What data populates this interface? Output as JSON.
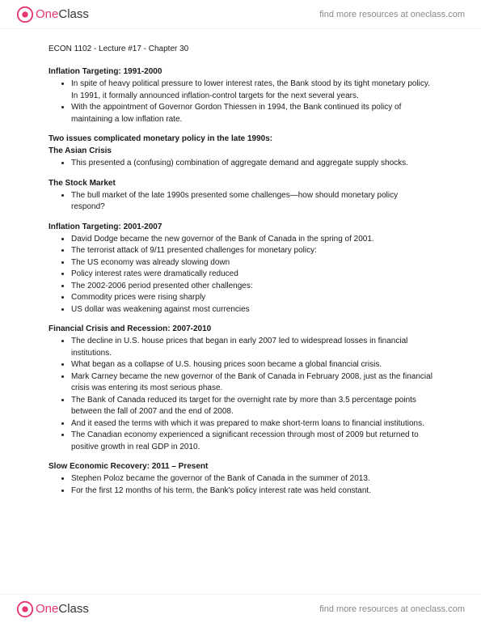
{
  "brand": {
    "name_part1": "One",
    "name_part2": "Class",
    "header_link": "find more resources at oneclass.com"
  },
  "doc": {
    "title": "ECON 1102 - Lecture #17 - Chapter 30"
  },
  "sections": [
    {
      "heading": "Inflation Targeting: 1991-2000",
      "subheading": null,
      "bullets": [
        "In spite of heavy political pressure to lower interest rates, the Bank stood by its tight monetary policy. In 1991, it formally announced inflation-control targets for the next several years.",
        "With the appointment of Governor Gordon Thiessen in 1994, the Bank continued its policy of maintaining a low inflation rate."
      ]
    },
    {
      "heading": "Two issues complicated monetary policy in the late 1990s:",
      "subheading": "The Asian Crisis",
      "bullets": [
        "This presented a (confusing) combination of aggregate demand and aggregate supply shocks."
      ]
    },
    {
      "heading": "The Stock Market",
      "subheading": null,
      "bullets": [
        "The bull market of the late 1990s presented some challenges—how should monetary policy respond?"
      ]
    },
    {
      "heading": "Inflation Targeting: 2001-2007",
      "subheading": null,
      "bullets": [
        "David Dodge became the new governor of the Bank of Canada in the spring of 2001.",
        "The terrorist attack of 9/11 presented challenges for monetary policy:",
        "The US economy was already slowing down",
        "Policy interest rates were dramatically reduced",
        "The 2002-2006 period presented other challenges:",
        "Commodity prices were rising sharply",
        "US dollar was weakening against most currencies"
      ]
    },
    {
      "heading": "Financial Crisis and Recession: 2007-2010",
      "subheading": null,
      "bullets": [
        "The decline in U.S. house prices that began in early 2007 led to widespread losses in financial institutions.",
        "What began as a collapse of U.S. housing prices soon became a global financial crisis.",
        "Mark Carney became the new governor of the Bank of Canada in February 2008, just as the financial crisis was entering its most serious phase.",
        "The Bank of Canada reduced its target for the overnight rate by more than 3.5 percentage points between the fall of 2007 and the end of 2008.",
        "And it eased the terms with which it was prepared to make short-term loans to financial institutions.",
        "The Canadian economy experienced a significant recession through most of 2009 but returned to positive growth in real GDP in 2010."
      ]
    },
    {
      "heading": "Slow Economic Recovery: 2011 – Present",
      "subheading": null,
      "bullets": [
        "Stephen Poloz became the governor of the Bank of Canada in the summer of 2013.",
        "For the first 12 months of his term, the Bank's policy interest rate was held constant."
      ]
    }
  ]
}
